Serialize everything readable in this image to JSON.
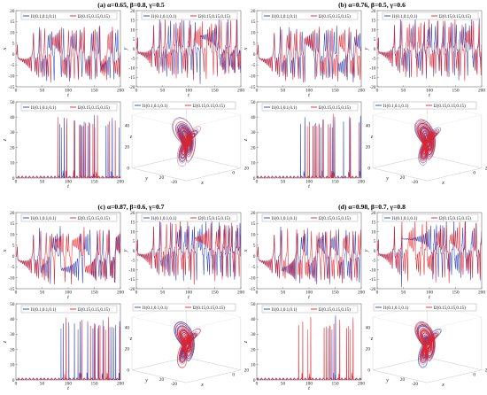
{
  "colors": {
    "s1": "#2b3fb8",
    "s2": "#e3242b",
    "axis": "#555555"
  },
  "legend": {
    "s1": "I1(0.1,0.1,0.1)",
    "s2": "I2(0.15,0.15,0.15)"
  },
  "panels": [
    {
      "title": "(a) α=0.65, β=0.8, γ=0.5"
    },
    {
      "title": "(b) α=0.76, β=0.5, γ=0.6"
    },
    {
      "title": "(c) α=0.87, β=0.6, γ=0.7"
    },
    {
      "title": "(d) α=0.98, β=0.7, γ=0.8"
    }
  ],
  "chart_data": [
    {
      "type": "line",
      "panel": "a",
      "xlabel": "t",
      "ylabel": "x",
      "xlim": [
        0,
        200
      ],
      "ylim": [
        -15,
        20
      ],
      "xticks": [
        0,
        50,
        100,
        150,
        200
      ],
      "yticks": [
        -15,
        -10,
        -5,
        0,
        5,
        10,
        15,
        20
      ],
      "series": [
        {
          "name": "I1(0.1,0.1,0.1)"
        },
        {
          "name": "I2(0.15,0.15,0.15)"
        }
      ]
    },
    {
      "type": "line",
      "panel": "a",
      "xlabel": "t",
      "ylabel": "y",
      "xlim": [
        0,
        200
      ],
      "ylim": [
        -20,
        20
      ],
      "xticks": [
        0,
        50,
        100,
        150,
        200
      ],
      "yticks": [
        -20,
        -15,
        -10,
        -5,
        0,
        5,
        10,
        15,
        20
      ],
      "series": [
        {
          "name": "I1(0.1,0.1,0.1)"
        },
        {
          "name": "I2(0.15,0.15,0.15)"
        }
      ]
    },
    {
      "type": "line",
      "panel": "a",
      "xlabel": "t",
      "ylabel": "z",
      "xlim": [
        0,
        200
      ],
      "ylim": [
        0,
        50
      ],
      "xticks": [
        0,
        50,
        100,
        150,
        200
      ],
      "yticks": [
        0,
        10,
        20,
        30,
        40,
        50
      ],
      "series": [
        {
          "name": "I1(0.1,0.1,0.1)"
        },
        {
          "name": "I2(0.15,0.15,0.15)"
        }
      ]
    },
    {
      "type": "line3d",
      "panel": "a",
      "xlabel": "x",
      "ylabel": "y",
      "zlabel": "z",
      "xticks": [
        -20,
        0,
        20
      ],
      "yticks": [
        -20,
        20
      ],
      "zticks": [
        0,
        20,
        40
      ],
      "series": [
        {
          "name": "I1(0.1,0.1,0.1)"
        },
        {
          "name": "I2(0.15,0.15,0.15)"
        }
      ]
    },
    {
      "type": "line",
      "panel": "b",
      "xlabel": "t",
      "ylabel": "x",
      "xlim": [
        0,
        200
      ],
      "ylim": [
        -15,
        20
      ],
      "xticks": [
        0,
        50,
        100,
        150,
        200
      ],
      "yticks": [
        -15,
        -10,
        -5,
        0,
        5,
        10,
        15,
        20
      ],
      "series": [
        {
          "name": "I1(0.1,0.1,0.1)"
        },
        {
          "name": "I2(0.15,0.15,0.15)"
        }
      ]
    },
    {
      "type": "line",
      "panel": "b",
      "xlabel": "t",
      "ylabel": "y",
      "xlim": [
        0,
        200
      ],
      "ylim": [
        -20,
        20
      ],
      "xticks": [
        0,
        50,
        100,
        150,
        200
      ],
      "yticks": [
        -20,
        -15,
        -10,
        -5,
        0,
        5,
        10,
        15,
        20
      ],
      "series": [
        {
          "name": "I1(0.1,0.1,0.1)"
        },
        {
          "name": "I2(0.15,0.15,0.15)"
        }
      ]
    },
    {
      "type": "line",
      "panel": "b",
      "xlabel": "t",
      "ylabel": "z",
      "xlim": [
        0,
        200
      ],
      "ylim": [
        0,
        50
      ],
      "xticks": [
        0,
        50,
        100,
        150,
        200
      ],
      "yticks": [
        0,
        10,
        20,
        30,
        40,
        50
      ],
      "series": [
        {
          "name": "I1(0.1,0.1,0.1)"
        },
        {
          "name": "I2(0.15,0.15,0.15)"
        }
      ]
    },
    {
      "type": "line3d",
      "panel": "b",
      "xlabel": "x",
      "ylabel": "y",
      "zlabel": "z",
      "xticks": [
        -20,
        0,
        20
      ],
      "yticks": [
        -20,
        20
      ],
      "zticks": [
        0,
        20,
        40
      ],
      "series": [
        {
          "name": "I1(0.1,0.1,0.1)"
        },
        {
          "name": "I2(0.15,0.15,0.15)"
        }
      ]
    },
    {
      "type": "line",
      "panel": "c",
      "xlabel": "t",
      "ylabel": "x",
      "xlim": [
        0,
        200
      ],
      "ylim": [
        -15,
        20
      ],
      "xticks": [
        0,
        50,
        100,
        150,
        200
      ],
      "yticks": [
        -15,
        -10,
        -5,
        0,
        5,
        10,
        15,
        20
      ],
      "series": [
        {
          "name": "I1(0.1,0.1,0.1)"
        },
        {
          "name": "I2(0.15,0.15,0.15)"
        }
      ]
    },
    {
      "type": "line",
      "panel": "c",
      "xlabel": "t",
      "ylabel": "y",
      "xlim": [
        0,
        200
      ],
      "ylim": [
        -20,
        20
      ],
      "xticks": [
        0,
        50,
        100,
        150,
        200
      ],
      "yticks": [
        -20,
        -15,
        -10,
        -5,
        0,
        5,
        10,
        15,
        20
      ],
      "series": [
        {
          "name": "I1(0.1,0.1,0.1)"
        },
        {
          "name": "I2(0.15,0.15,0.15)"
        }
      ]
    },
    {
      "type": "line",
      "panel": "c",
      "xlabel": "t",
      "ylabel": "z",
      "xlim": [
        0,
        200
      ],
      "ylim": [
        0,
        50
      ],
      "xticks": [
        0,
        50,
        100,
        150,
        200
      ],
      "yticks": [
        0,
        10,
        20,
        30,
        40,
        50
      ],
      "series": [
        {
          "name": "I1(0.1,0.1,0.1)"
        },
        {
          "name": "I2(0.15,0.15,0.15)"
        }
      ]
    },
    {
      "type": "line3d",
      "panel": "c",
      "xlabel": "x",
      "ylabel": "y",
      "zlabel": "z",
      "xticks": [
        -20,
        0,
        20
      ],
      "yticks": [
        -20,
        20
      ],
      "zticks": [
        0,
        20,
        40
      ],
      "series": [
        {
          "name": "I1(0.1,0.1,0.1)"
        },
        {
          "name": "I2(0.15,0.15,0.15)"
        }
      ]
    },
    {
      "type": "line",
      "panel": "d",
      "xlabel": "t",
      "ylabel": "x",
      "xlim": [
        0,
        200
      ],
      "ylim": [
        -15,
        20
      ],
      "xticks": [
        0,
        50,
        100,
        150,
        200
      ],
      "yticks": [
        -15,
        -10,
        -5,
        0,
        5,
        10,
        15,
        20
      ],
      "series": [
        {
          "name": "I1(0.1,0.1,0.1)"
        },
        {
          "name": "I2(0.15,0.15,0.15)"
        }
      ]
    },
    {
      "type": "line",
      "panel": "d",
      "xlabel": "t",
      "ylabel": "y",
      "xlim": [
        0,
        200
      ],
      "ylim": [
        -20,
        20
      ],
      "xticks": [
        0,
        50,
        100,
        150,
        200
      ],
      "yticks": [
        -20,
        -15,
        -10,
        -5,
        0,
        5,
        10,
        15,
        20
      ],
      "series": [
        {
          "name": "I1(0.1,0.1,0.1)"
        },
        {
          "name": "I2(0.15,0.15,0.15)"
        }
      ]
    },
    {
      "type": "line",
      "panel": "d",
      "xlabel": "t",
      "ylabel": "z",
      "xlim": [
        0,
        200
      ],
      "ylim": [
        0,
        50
      ],
      "xticks": [
        0,
        50,
        100,
        150,
        200
      ],
      "yticks": [
        0,
        10,
        20,
        30,
        40,
        50
      ],
      "series": [
        {
          "name": "I1(0.1,0.1,0.1)"
        },
        {
          "name": "I2(0.15,0.15,0.15)"
        }
      ]
    },
    {
      "type": "line3d",
      "panel": "d",
      "xlabel": "x",
      "ylabel": "y",
      "zlabel": "z",
      "xticks": [
        -20,
        0,
        20
      ],
      "yticks": [
        -20,
        20
      ],
      "zticks": [
        0,
        20,
        40
      ],
      "series": [
        {
          "name": "I1(0.1,0.1,0.1)"
        },
        {
          "name": "I2(0.15,0.15,0.15)"
        }
      ]
    }
  ]
}
